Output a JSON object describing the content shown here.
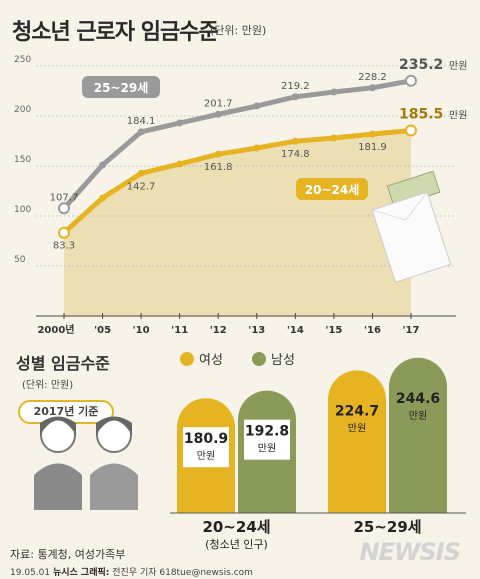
{
  "title": "청소년 근로자 임금수준",
  "title_unit": "(단위: 만원)",
  "chart_data": [
    {
      "type": "line",
      "title": "청소년 근로자 임금수준",
      "unit": "(단위: 만원)",
      "categories": [
        "2000년",
        "'05",
        "'10",
        "'11",
        "'12",
        "'13",
        "'14",
        "'15",
        "'16",
        "'17"
      ],
      "ylim": [
        0,
        250
      ],
      "yticks": [
        0,
        50,
        100,
        150,
        200,
        250
      ],
      "grid": true,
      "value_unit": "만원",
      "series": [
        {
          "name": "25~29세",
          "color": "#9a9a9a",
          "values": [
            107.7,
            151,
            184.1,
            193,
            201.7,
            210,
            219.2,
            224,
            228.2,
            235.2
          ],
          "labels": [
            "107.7",
            "",
            "184.1",
            "",
            "201.7",
            "",
            "219.2",
            "",
            "228.2",
            "235.2"
          ]
        },
        {
          "name": "20~24세",
          "color": "#e6b422",
          "values": [
            83.3,
            118,
            142.7,
            152,
            161.8,
            168,
            174.8,
            178,
            181.9,
            185.5
          ],
          "labels": [
            "83.3",
            "",
            "142.7",
            "",
            "161.8",
            "",
            "174.8",
            "",
            "181.9",
            "185.5"
          ]
        }
      ]
    },
    {
      "type": "bar",
      "title": "성별 임금수준",
      "unit": "(단위: 만원)",
      "basis": "2017년 기준",
      "categories": [
        "20~24세",
        "25~29세"
      ],
      "category_note": "(청소년 인구)",
      "value_unit": "만원",
      "series": [
        {
          "name": "여성",
          "color": "#e6b422",
          "values": [
            180.9,
            224.7
          ]
        },
        {
          "name": "남성",
          "color": "#8a9a58",
          "values": [
            192.8,
            244.6
          ]
        }
      ]
    }
  ],
  "gender": {
    "title": "성별 임금수준",
    "unit": "(단위: 만원)",
    "basis": "2017년 기준"
  },
  "footer": {
    "source": "자료: 통계청, 여성가족부",
    "date": "19.05.01",
    "credit_label": "뉴시스 그래픽:",
    "credit": "전진우 기자 618tue@newsis.com",
    "logo": "NEWSIS"
  }
}
